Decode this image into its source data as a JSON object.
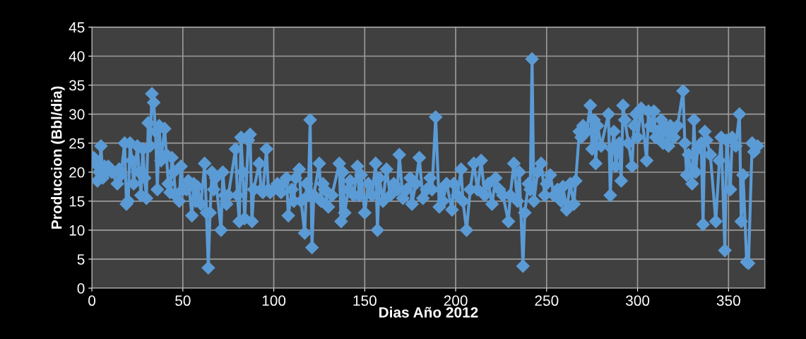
{
  "chart_data": {
    "type": "line",
    "xlabel": "Dias Año 2012",
    "ylabel": "Produccion (Bbl/dia)",
    "xlim": [
      0,
      370
    ],
    "xticks": [
      0,
      50,
      100,
      150,
      200,
      250,
      300,
      350
    ],
    "ylim": [
      0,
      45
    ],
    "yticks": [
      0,
      5,
      10,
      15,
      20,
      25,
      30,
      35,
      40,
      45
    ],
    "grid": true,
    "marker": "diamond",
    "line_style": "solid",
    "series": [
      {
        "color": "#5b9bd5",
        "x": [
          1,
          2,
          3,
          4,
          5,
          6,
          7,
          8,
          9,
          10,
          11,
          14,
          15,
          16,
          18,
          19,
          20,
          21,
          22,
          23,
          25,
          26,
          27,
          28,
          29,
          30,
          31,
          32,
          33,
          34,
          35,
          36,
          37,
          38,
          40,
          41,
          42,
          43,
          44,
          45,
          46,
          48,
          49,
          50,
          52,
          53,
          55,
          56,
          57,
          58,
          60,
          62,
          63,
          64,
          65,
          66,
          67,
          68,
          71,
          72,
          73,
          74,
          75,
          79,
          80,
          81,
          82,
          83,
          84,
          86,
          87,
          88,
          89,
          92,
          93,
          94,
          96,
          97,
          98,
          100,
          102,
          104,
          105,
          107,
          108,
          110,
          111,
          112,
          114,
          115,
          117,
          118,
          119,
          120,
          121,
          122,
          125,
          126,
          127,
          128,
          130,
          132,
          136,
          137,
          138,
          139,
          141,
          142,
          144,
          146,
          147,
          148,
          150,
          152,
          154,
          156,
          157,
          158,
          160,
          162,
          164,
          166,
          168,
          169,
          171,
          173,
          175,
          176,
          178,
          180,
          182,
          184,
          186,
          187,
          189,
          191,
          192,
          193,
          195,
          198,
          199,
          201,
          203,
          204,
          206,
          208,
          210,
          212,
          214,
          216,
          218,
          220,
          222,
          224,
          226,
          229,
          230,
          232,
          234,
          235,
          237,
          238,
          240,
          241,
          242,
          243,
          245,
          247,
          249,
          250,
          252,
          254,
          256,
          258,
          259,
          261,
          263,
          265,
          266,
          268,
          269,
          270,
          272,
          274,
          275,
          276,
          277,
          278,
          280,
          284,
          285,
          286,
          287,
          288,
          290,
          291,
          292,
          293,
          295,
          297,
          298,
          299,
          300,
          302,
          305,
          306,
          307,
          309,
          310,
          311,
          313,
          314,
          315,
          317,
          318,
          319,
          320,
          322,
          325,
          326,
          327,
          328,
          330,
          331,
          332,
          333,
          335,
          336,
          337,
          338,
          340,
          343,
          345,
          346,
          348,
          349,
          351,
          352,
          354,
          356,
          357,
          358,
          360,
          361,
          363,
          364,
          366
        ],
        "values": [
          22.5,
          21.5,
          18.5,
          20,
          24.5,
          19,
          21,
          20,
          21,
          20.5,
          20,
          18,
          20.5,
          19.5,
          25,
          14.5,
          15,
          25,
          22,
          18,
          24.5,
          20,
          16,
          24,
          19,
          15.5,
          28.5,
          24.5,
          33.5,
          32,
          27,
          17,
          28,
          22,
          27.5,
          23,
          18,
          16.5,
          22.5,
          20,
          16,
          15,
          21,
          17,
          17,
          18.5,
          12.5,
          18,
          15,
          17.5,
          14.5,
          21.5,
          13,
          3.5,
          13,
          20,
          17,
          19,
          10,
          20,
          16,
          14.5,
          16,
          24,
          16,
          11.5,
          26,
          20,
          12,
          25.5,
          26.5,
          11.5,
          17,
          21.5,
          17,
          16.5,
          24,
          17,
          16.5,
          17,
          18,
          16.5,
          18,
          19,
          12.5,
          17,
          15,
          19,
          20.5,
          15,
          9.5,
          18,
          16,
          29,
          7,
          16,
          21.5,
          15,
          18,
          17,
          14,
          16,
          21.5,
          11.5,
          20,
          13,
          17,
          18.5,
          16,
          21,
          16,
          19.5,
          13,
          18,
          16,
          21.5,
          10,
          19,
          15,
          20.5,
          16,
          18,
          17,
          23,
          15.5,
          17,
          19,
          14.5,
          18,
          22.5,
          15.5,
          17,
          19,
          17,
          29.5,
          14,
          17,
          15,
          18,
          13.5,
          18,
          16,
          20.5,
          15,
          10,
          17,
          21.5,
          17,
          22,
          16,
          18,
          14.5,
          19,
          17,
          16,
          11.5,
          16,
          21.5,
          15,
          20,
          3.8,
          13,
          18,
          17,
          39.5,
          15,
          20,
          21.5,
          16,
          18,
          19.5,
          16,
          17,
          15,
          17.5,
          13.5,
          18,
          14.5,
          18.5,
          27,
          26,
          28,
          27,
          31.5,
          24,
          29,
          21.5,
          28,
          24.5,
          30,
          16,
          24,
          27,
          21,
          25,
          18.5,
          31.5,
          29,
          25,
          21,
          28,
          30,
          26,
          31,
          22,
          30.5,
          28,
          30.5,
          26,
          27,
          29,
          25,
          28,
          24.5,
          28,
          27,
          26,
          28,
          34,
          25,
          19.5,
          23,
          18,
          29,
          20,
          24,
          25,
          11,
          27,
          25.5,
          23,
          11.5,
          22,
          26,
          6.5,
          25.5,
          17,
          26,
          24.5,
          30,
          11.5,
          19.5,
          4.5,
          4.3,
          25,
          23.5,
          24.5
        ]
      }
    ]
  }
}
